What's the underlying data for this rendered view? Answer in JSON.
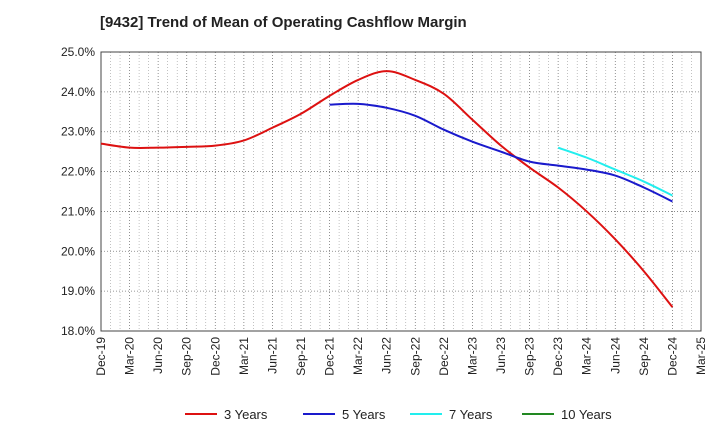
{
  "chart_data": {
    "type": "line",
    "title": "[9432]  Trend of Mean of Operating Cashflow Margin",
    "xlabel": "",
    "ylabel": "",
    "x_ticks": [
      "Dec-19",
      "Mar-20",
      "Jun-20",
      "Sep-20",
      "Dec-20",
      "Mar-21",
      "Jun-21",
      "Sep-21",
      "Dec-21",
      "Mar-22",
      "Jun-22",
      "Sep-22",
      "Dec-22",
      "Mar-23",
      "Jun-23",
      "Sep-23",
      "Dec-23",
      "Mar-24",
      "Jun-24",
      "Sep-24",
      "Dec-24",
      "Mar-25"
    ],
    "y_ticks": [
      "18.0%",
      "19.0%",
      "20.0%",
      "21.0%",
      "22.0%",
      "23.0%",
      "24.0%",
      "25.0%"
    ],
    "ylim": [
      18.0,
      25.0
    ],
    "grid": true,
    "legend_position": "bottom",
    "series": [
      {
        "name": "3 Years",
        "color": "#dd1111",
        "x": [
          "Dec-19",
          "Mar-20",
          "Jun-20",
          "Sep-20",
          "Dec-20",
          "Mar-21",
          "Jun-21",
          "Sep-21",
          "Dec-21",
          "Mar-22",
          "Jun-22",
          "Sep-22",
          "Dec-22",
          "Mar-23",
          "Jun-23",
          "Sep-23",
          "Dec-23",
          "Mar-24",
          "Jun-24",
          "Sep-24",
          "Dec-24"
        ],
        "values": [
          22.7,
          22.6,
          22.6,
          22.62,
          22.65,
          22.78,
          23.1,
          23.45,
          23.9,
          24.3,
          24.52,
          24.3,
          23.95,
          23.3,
          22.65,
          22.1,
          21.6,
          21.0,
          20.3,
          19.5,
          18.6
        ]
      },
      {
        "name": "5 Years",
        "color": "#1a1acc",
        "x": [
          "Dec-21",
          "Mar-22",
          "Jun-22",
          "Sep-22",
          "Dec-22",
          "Mar-23",
          "Jun-23",
          "Sep-23",
          "Dec-23",
          "Mar-24",
          "Jun-24",
          "Sep-24",
          "Dec-24"
        ],
        "values": [
          23.68,
          23.7,
          23.6,
          23.4,
          23.05,
          22.75,
          22.5,
          22.25,
          22.15,
          22.05,
          21.9,
          21.6,
          21.25
        ]
      },
      {
        "name": "7 Years",
        "color": "#22eeee",
        "x": [
          "Dec-23",
          "Mar-24",
          "Jun-24",
          "Sep-24",
          "Dec-24"
        ],
        "values": [
          22.6,
          22.35,
          22.05,
          21.75,
          21.4
        ]
      },
      {
        "name": "10 Years",
        "color": "#228822",
        "x": [],
        "values": []
      }
    ]
  }
}
